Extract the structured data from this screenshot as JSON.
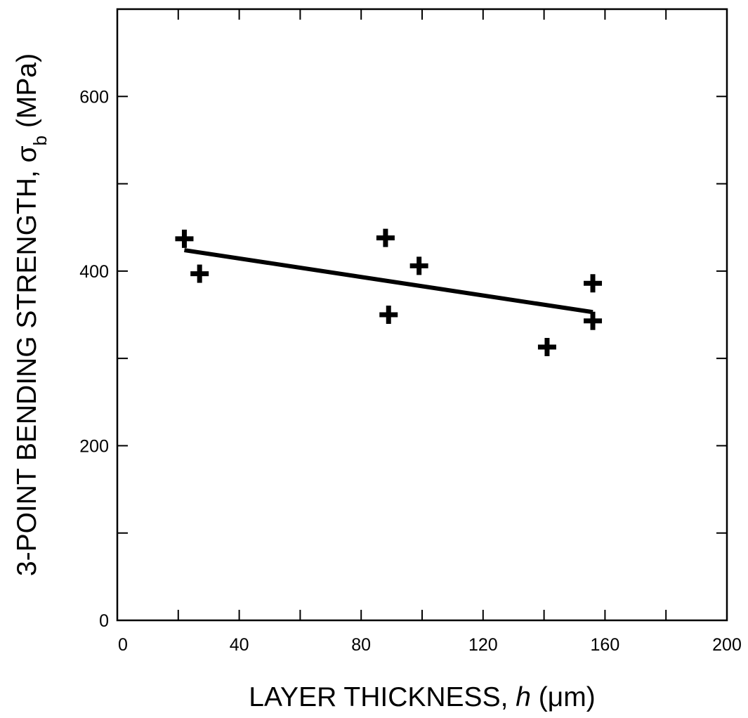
{
  "chart_data": {
    "type": "scatter",
    "title": "",
    "xlabel": {
      "prefix": "LAYER THICKNESS, ",
      "variable": "h",
      "unit": " (μm)"
    },
    "ylabel": {
      "prefix": "3-POINT BENDING STRENGTH, ",
      "symbol": "σ",
      "subscript": "b",
      "unit": " (MPa)"
    },
    "xlim": [
      0,
      200
    ],
    "ylim": [
      0,
      700
    ],
    "x_tick_labels": [
      {
        "value": 0,
        "label": "0"
      },
      {
        "value": 40,
        "label": "40"
      },
      {
        "value": 80,
        "label": "80"
      },
      {
        "value": 120,
        "label": "120"
      },
      {
        "value": 160,
        "label": "160"
      },
      {
        "value": 200,
        "label": "200"
      }
    ],
    "x_minor_ticks": [
      20,
      60,
      100,
      140,
      180
    ],
    "y_tick_labels": [
      {
        "value": 0,
        "label": "0"
      },
      {
        "value": 200,
        "label": "200"
      },
      {
        "value": 400,
        "label": "400"
      },
      {
        "value": 600,
        "label": "600"
      }
    ],
    "y_minor_ticks": [
      100,
      300,
      500
    ],
    "grid": false,
    "series": [
      {
        "marker": "plus",
        "color": "#000000",
        "points": [
          {
            "x": 22,
            "y": 437
          },
          {
            "x": 27,
            "y": 397
          },
          {
            "x": 88,
            "y": 438
          },
          {
            "x": 89,
            "y": 350
          },
          {
            "x": 99,
            "y": 406
          },
          {
            "x": 141,
            "y": 313
          },
          {
            "x": 156,
            "y": 386
          },
          {
            "x": 156,
            "y": 343
          }
        ]
      }
    ],
    "fit_line": {
      "color": "#000000",
      "points": [
        {
          "x": 22,
          "y": 424
        },
        {
          "x": 156,
          "y": 353
        }
      ]
    }
  }
}
